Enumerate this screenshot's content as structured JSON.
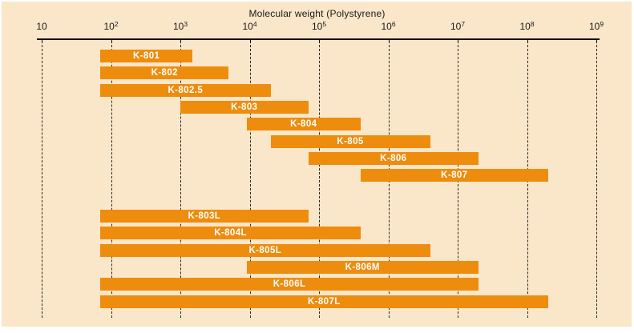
{
  "figure": {
    "panel_color": "#FAE6C8",
    "background": "#FFFFFF"
  },
  "chart_data": {
    "type": "bar",
    "variant": "horizontal-range-bars",
    "title": "Molecular weight (Polystyrene)",
    "x_axis": {
      "scale": "log10",
      "min": 10,
      "max": 1000000000,
      "ticks": [
        {
          "base": "10",
          "exp": "",
          "value": 10
        },
        {
          "base": "10",
          "exp": "2",
          "value": 100
        },
        {
          "base": "10",
          "exp": "3",
          "value": 1000
        },
        {
          "base": "10",
          "exp": "4",
          "value": 10000
        },
        {
          "base": "10",
          "exp": "5",
          "value": 100000
        },
        {
          "base": "10",
          "exp": "6",
          "value": 1000000
        },
        {
          "base": "10",
          "exp": "7",
          "value": 10000000
        },
        {
          "base": "10",
          "exp": "8",
          "value": 100000000
        },
        {
          "base": "10",
          "exp": "9",
          "value": 1000000000
        }
      ],
      "gridlines": "vertical-dashed-at-each-decade"
    },
    "series": [
      {
        "name": "K-801",
        "group": "standard",
        "mw_min": 70,
        "mw_max": 1500
      },
      {
        "name": "K-802",
        "group": "standard",
        "mw_min": 70,
        "mw_max": 5000
      },
      {
        "name": "K-802.5",
        "group": "standard",
        "mw_min": 70,
        "mw_max": 20000
      },
      {
        "name": "K-803",
        "group": "standard",
        "mw_min": 1000,
        "mw_max": 70000
      },
      {
        "name": "K-804",
        "group": "standard",
        "mw_min": 9000,
        "mw_max": 400000
      },
      {
        "name": "K-805",
        "group": "standard",
        "mw_min": 20000,
        "mw_max": 4000000
      },
      {
        "name": "K-806",
        "group": "standard",
        "mw_min": 70000,
        "mw_max": 20000000
      },
      {
        "name": "K-807",
        "group": "standard",
        "mw_min": 400000,
        "mw_max": 200000000
      },
      {
        "name": "K-803L",
        "group": "linear",
        "mw_min": 70,
        "mw_max": 70000
      },
      {
        "name": "K-804L",
        "group": "linear",
        "mw_min": 70,
        "mw_max": 400000
      },
      {
        "name": "K-805L",
        "group": "linear",
        "mw_min": 70,
        "mw_max": 4000000
      },
      {
        "name": "K-806M",
        "group": "linear",
        "mw_min": 9000,
        "mw_max": 20000000
      },
      {
        "name": "K-806L",
        "group": "linear",
        "mw_min": 70,
        "mw_max": 20000000
      },
      {
        "name": "K-807L",
        "group": "linear",
        "mw_min": 70,
        "mw_max": 200000000
      }
    ],
    "colors": {
      "bar": "#EE8C0E",
      "bar_label": "#FFFFFF",
      "axis": "#111111",
      "grid": "#2A2A2A",
      "text": "#1A1A1A"
    }
  }
}
